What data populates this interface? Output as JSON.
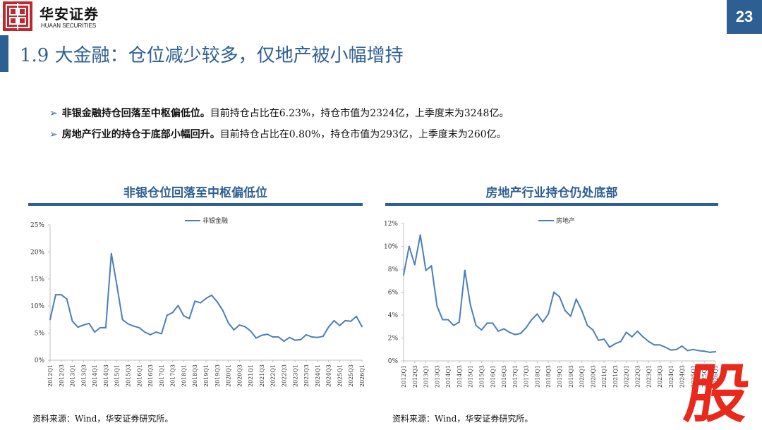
{
  "header": {
    "brand_cn": "华安证券",
    "brand_en": "HUAAN SECURITIES",
    "page_number": "23"
  },
  "page_title": "1.9 大金融：仓位减少较多，仅地产被小幅增持",
  "bullets": [
    {
      "bold": "非银金融持仓回落至中枢偏低位。",
      "text": "目前持仓占比在6.23%，持仓市值为2324亿，上季度末为3248亿。"
    },
    {
      "bold": "房地产行业的持仓于底部小幅回升。",
      "text": "目前持仓占比在0.80%，持仓市值为293亿，上季度末为260亿。"
    }
  ],
  "colors": {
    "brand_blue": "#2e5f93",
    "line": "#4a7ebb",
    "logo_red": "#c0282d",
    "stamp_red": "#e8291c"
  },
  "watermark": "股",
  "chart_data": [
    {
      "type": "line",
      "title": "非银仓位回落至中枢偏低位",
      "series": [
        {
          "name": "非银金融",
          "values": [
            7.5,
            12.1,
            12.1,
            11.3,
            7.2,
            6.1,
            6.5,
            6.8,
            5.2,
            6.0,
            6.0,
            19.7,
            13.8,
            7.5,
            6.7,
            6.3,
            6.0,
            5.2,
            4.7,
            5.2,
            4.9,
            8.3,
            8.8,
            10.1,
            8.2,
            7.7,
            10.9,
            10.6,
            11.4,
            12.0,
            10.8,
            9.2,
            6.9,
            5.6,
            6.5,
            6.2,
            5.4,
            4.1,
            4.6,
            4.8,
            4.3,
            4.3,
            3.5,
            4.2,
            3.7,
            3.8,
            4.7,
            4.3,
            4.2,
            4.4,
            6.1,
            7.3,
            6.4,
            7.3,
            7.2,
            8.1,
            6.2
          ]
        }
      ],
      "x_tick_labels": [
        "2012Q1",
        "2012Q3",
        "2013Q1",
        "2013Q3",
        "2014Q1",
        "2014Q3",
        "2015Q1",
        "2015Q3",
        "2016Q1",
        "2016Q3",
        "2017Q1",
        "2017Q3",
        "2018Q1",
        "2018Q3",
        "2019Q1",
        "2019Q3",
        "2020Q1",
        "2020Q3",
        "2021Q1",
        "2021Q3",
        "2022Q1",
        "2022Q3",
        "2023Q1",
        "2023Q3",
        "2024Q1",
        "2024Q3",
        "2025Q1",
        "2025Q3",
        "2026Q1"
      ],
      "y_ticks": [
        "0%",
        "5%",
        "10%",
        "15%",
        "20%",
        "25%"
      ],
      "ylim": [
        0,
        25
      ],
      "legend": "top-center",
      "grid": false
    },
    {
      "type": "line",
      "title": "房地产行业持仓仍处底部",
      "series": [
        {
          "name": "房地产",
          "values": [
            7.5,
            10.0,
            8.4,
            11.0,
            7.9,
            8.3,
            4.8,
            3.6,
            3.6,
            3.1,
            3.4,
            7.9,
            4.9,
            3.1,
            2.7,
            3.3,
            3.3,
            2.6,
            2.8,
            2.5,
            2.3,
            2.4,
            2.9,
            3.6,
            4.1,
            3.4,
            4.1,
            6.0,
            5.6,
            4.4,
            3.9,
            5.4,
            4.4,
            3.1,
            2.7,
            1.8,
            1.9,
            1.2,
            1.5,
            1.7,
            2.5,
            2.1,
            2.6,
            2.1,
            1.7,
            1.4,
            1.4,
            1.2,
            0.95,
            1.0,
            1.3,
            0.9,
            1.0,
            0.9,
            0.85,
            0.75,
            0.8
          ]
        }
      ],
      "x_tick_labels": [
        "2012Q1",
        "2012Q3",
        "2013Q1",
        "2013Q3",
        "2014Q1",
        "2014Q3",
        "2015Q1",
        "2015Q3",
        "2016Q1",
        "2016Q3",
        "2017Q1",
        "2017Q3",
        "2018Q1",
        "2018Q3",
        "2019Q1",
        "2019Q3",
        "2020Q1",
        "2020Q3",
        "2021Q1",
        "2021Q3",
        "2022Q1",
        "2022Q3",
        "2023Q1",
        "2023Q3",
        "2024Q1",
        "2024Q3",
        "2025Q1",
        "2025Q3",
        "2026Q1"
      ],
      "y_ticks": [
        "0%",
        "2%",
        "4%",
        "6%",
        "8%",
        "10%",
        "12%"
      ],
      "ylim": [
        0,
        12
      ],
      "legend": "top-center",
      "grid": false
    }
  ],
  "sources": [
    "资料来源：Wind，华安证券研究所。",
    "资料来源：Wind，华安证券研究所。"
  ]
}
